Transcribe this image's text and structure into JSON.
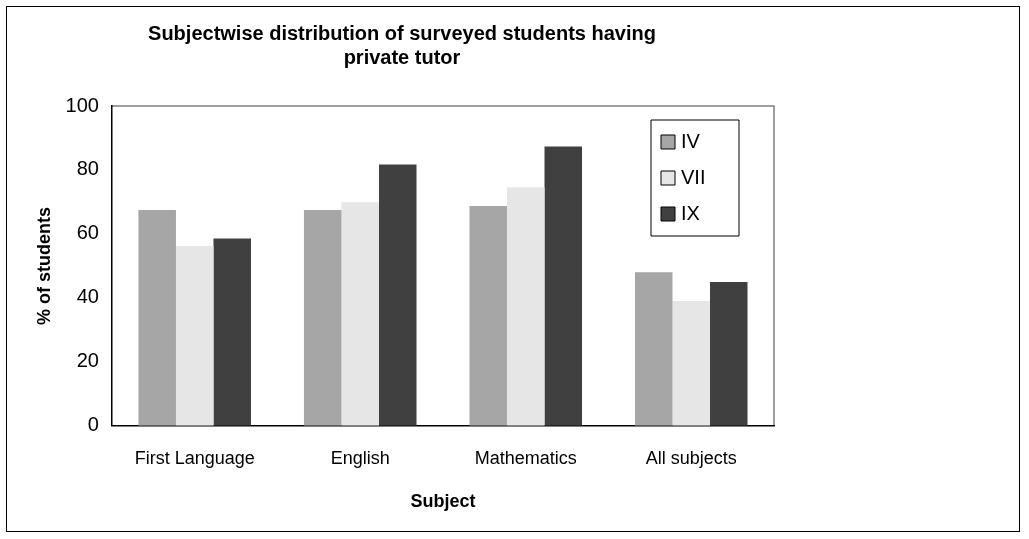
{
  "chart_data": {
    "type": "bar",
    "title": [
      "Subjectwise distribution of surveyed students having",
      "private tutor"
    ],
    "xlabel": "Subject",
    "ylabel": "% of students",
    "categories": [
      "First Language",
      "English",
      "Mathematics",
      "All subjects"
    ],
    "series": [
      {
        "name": "IV",
        "color": "#a6a6a6",
        "values": [
          67.5,
          67.5,
          68.7,
          48
        ]
      },
      {
        "name": "VII",
        "color": "#e6e6e6",
        "values": [
          56.2,
          69.9,
          74.6,
          39
        ]
      },
      {
        "name": "IX",
        "color": "#404040",
        "values": [
          58.6,
          81.7,
          87.3,
          45
        ]
      }
    ],
    "ylim": [
      0,
      100
    ],
    "yticks": [
      0,
      20,
      40,
      60,
      80,
      100
    ],
    "grid": false,
    "legend": "top right"
  }
}
